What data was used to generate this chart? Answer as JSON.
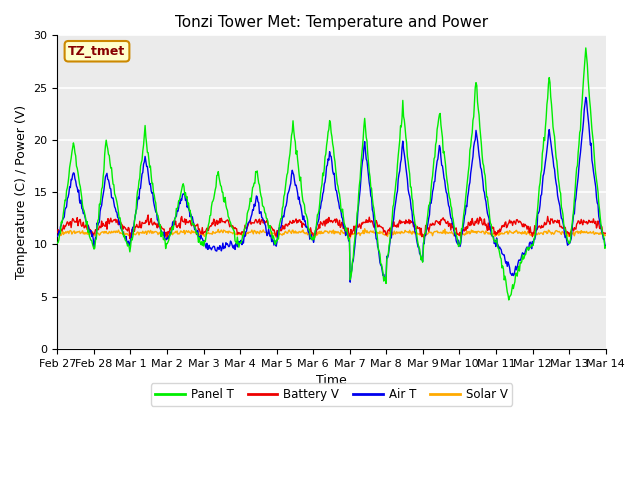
{
  "title": "Tonzi Tower Met: Temperature and Power",
  "xlabel": "Time",
  "ylabel": "Temperature (C) / Power (V)",
  "ylim": [
    0,
    30
  ],
  "yticks": [
    0,
    5,
    10,
    15,
    20,
    25,
    30
  ],
  "xtick_labels": [
    "Feb 27",
    "Feb 28",
    "Mar 1",
    "Mar 2",
    "Mar 3",
    "Mar 4",
    "Mar 5",
    "Mar 6",
    "Mar 7",
    "Mar 8",
    "Mar 9",
    "Mar 10",
    "Mar 11",
    "Mar 12",
    "Mar 13",
    "Mar 14"
  ],
  "legend_label": "TZ_tmet",
  "series_colors": {
    "panel_t": "#00ee00",
    "battery_v": "#ee0000",
    "air_t": "#0000ee",
    "solar_v": "#ffaa00"
  },
  "series_names": [
    "Panel T",
    "Battery V",
    "Air T",
    "Solar V"
  ],
  "plot_background": "#ebebeb",
  "grid_color": "#ffffff",
  "title_fontsize": 11,
  "axis_fontsize": 9,
  "tick_fontsize": 8
}
